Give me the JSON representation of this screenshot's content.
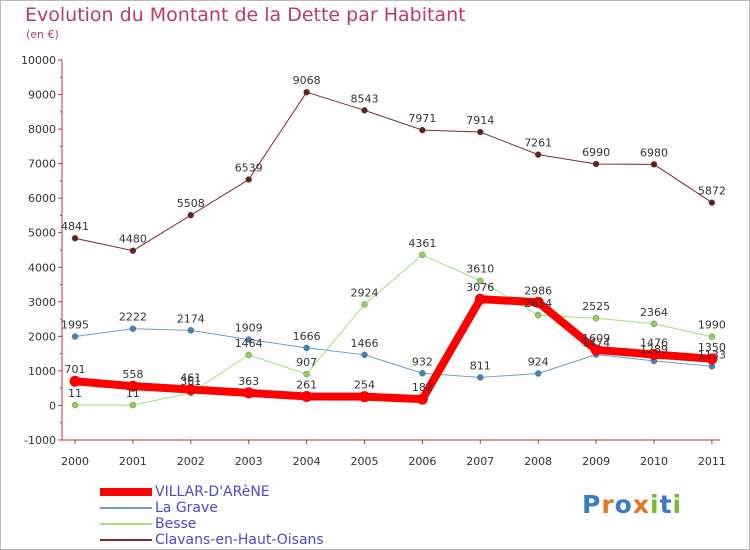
{
  "title": "Evolution du Montant de la Dette par Habitant",
  "subtitle": "(en €)",
  "logo": {
    "text": "Proxiti",
    "letters": [
      "P",
      "r",
      "o",
      "x",
      "i",
      "t",
      "i"
    ],
    "colors": [
      "#3a7bc8",
      "#e07820",
      "#3a7bc8",
      "#e07820",
      "#79b830",
      "#3a7bc8",
      "#79b830"
    ]
  },
  "chart_data": {
    "type": "line",
    "categories": [
      "2000",
      "2001",
      "2002",
      "2003",
      "2004",
      "2005",
      "2006",
      "2007",
      "2008",
      "2009",
      "2010",
      "2011"
    ],
    "ylim": [
      -1000,
      10000
    ],
    "yticks": [
      -1000,
      0,
      1000,
      2000,
      3000,
      4000,
      5000,
      6000,
      7000,
      8000,
      9000,
      10000
    ],
    "grid": false,
    "legend_position": "bottom-left",
    "series": [
      {
        "name": "Clavans-en-Haut-Oisans",
        "color": "#7b2a2a",
        "point_color": "#6a1e1e",
        "width": 1,
        "values": [
          4841,
          4480,
          5508,
          6539,
          9068,
          8543,
          7971,
          7914,
          7261,
          6990,
          6980,
          5872
        ],
        "labels": [
          "4841",
          "4480",
          "5508",
          "6539",
          "9068",
          "8543",
          "7971",
          "7914",
          "7261",
          "6990",
          "6980",
          "5872"
        ]
      },
      {
        "name": "La Grave",
        "color": "#6d9ccf",
        "point_color": "#3d82c8",
        "width": 1,
        "values": [
          1995,
          2222,
          2174,
          1909,
          1666,
          1466,
          932,
          811,
          924,
          1474,
          1289,
          1133
        ],
        "labels": [
          "1995",
          "2222",
          "2174",
          "1909",
          "1666",
          "1466",
          "932",
          "811",
          "924",
          "1474",
          "1289",
          "1133"
        ]
      },
      {
        "name": "Besse",
        "color": "#a6dc7c",
        "point_color": "#8ed25a",
        "width": 1,
        "values": [
          11,
          11,
          361,
          1464,
          907,
          2924,
          4361,
          3610,
          2614,
          2525,
          2364,
          1990
        ],
        "labels": [
          "11",
          "11",
          "361",
          "1464",
          "907",
          "2924",
          "4361",
          "3610",
          "2614",
          "2525",
          "2364",
          "1990"
        ]
      },
      {
        "name": "VILLAR-D'ARèNE",
        "color": "#ff0000",
        "point_color": "#ff0000",
        "width": 8,
        "values": [
          701,
          558,
          461,
          363,
          261,
          254,
          182,
          3076,
          2986,
          1609,
          1476,
          1350
        ],
        "labels": [
          "701",
          "558",
          "461",
          "363",
          "261",
          "254",
          "182",
          "3076",
          "2986",
          "1609",
          "1476",
          "1350"
        ]
      }
    ]
  }
}
